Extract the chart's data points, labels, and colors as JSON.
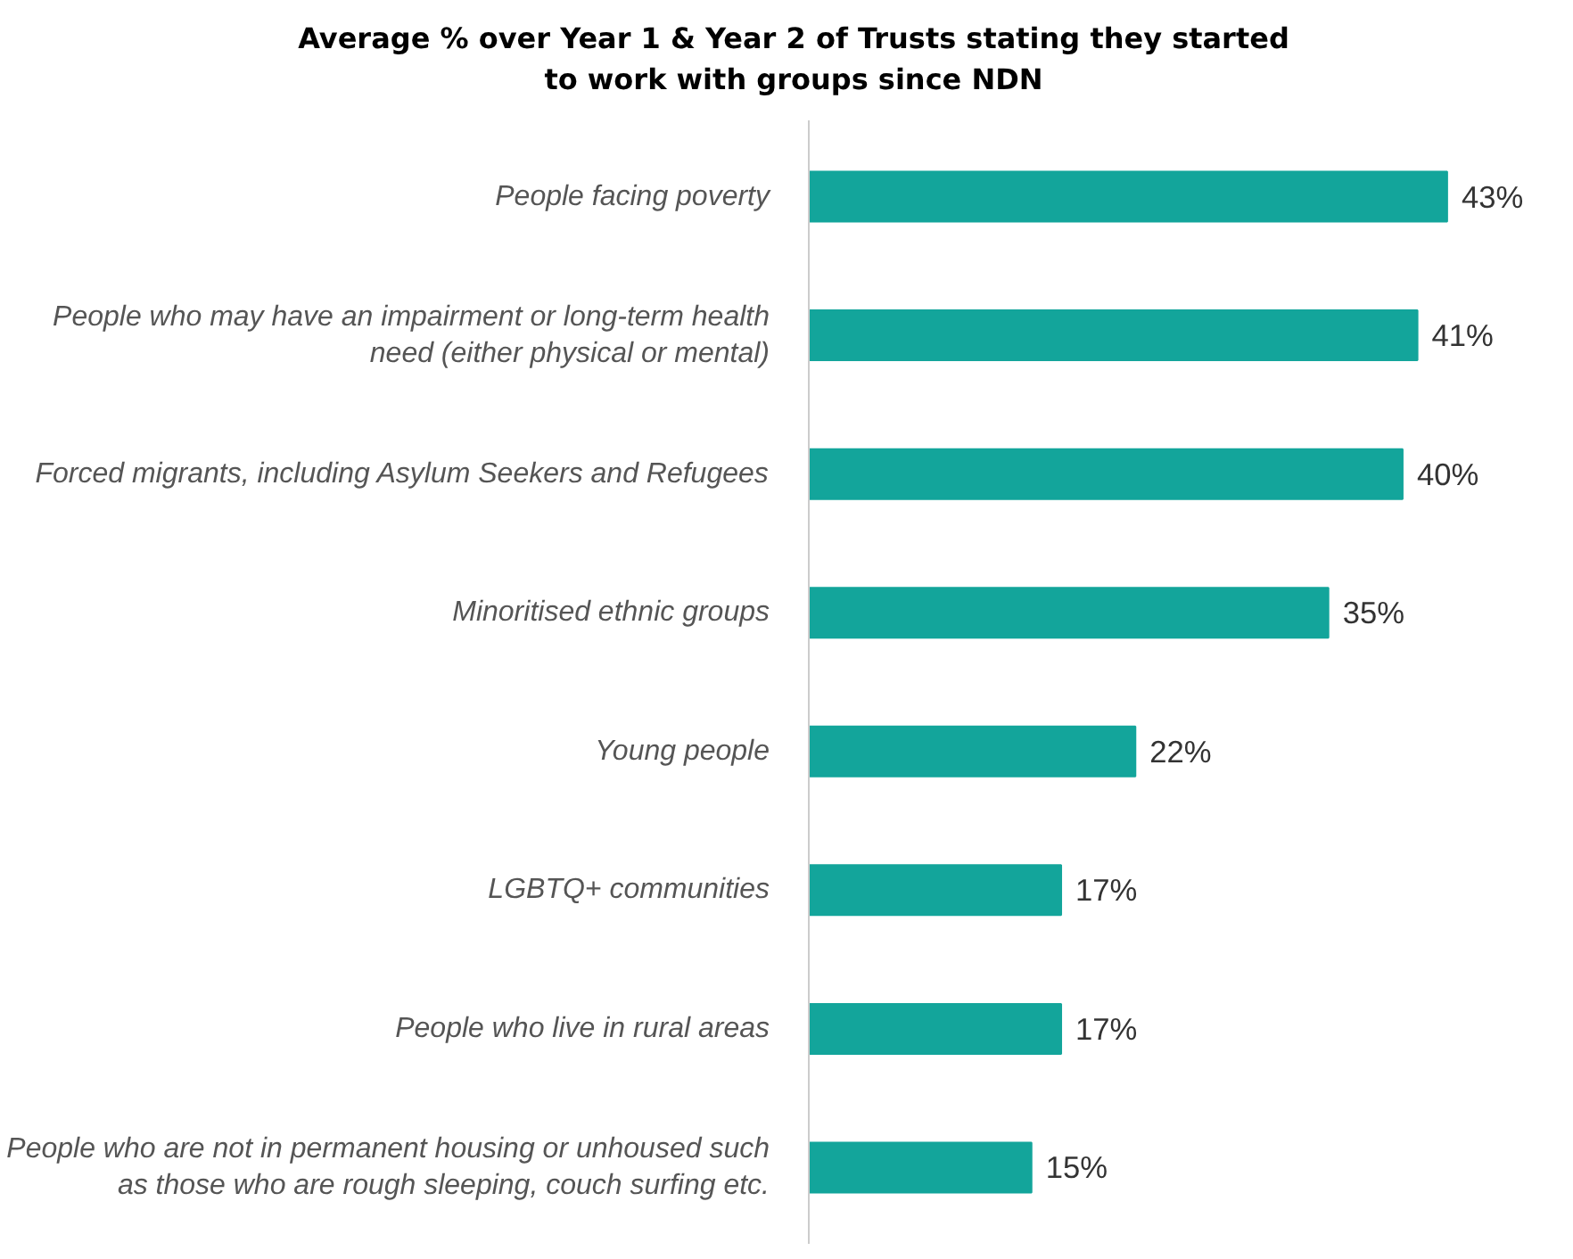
{
  "chart_data": {
    "type": "bar",
    "orientation": "horizontal",
    "title": "Average % over Year 1 & Year 2 of Trusts stating they started to work with groups since NDN",
    "categories": [
      "People facing poverty",
      "People who may have an impairment or long-term health need (either physical or mental)",
      "Forced migrants, including Asylum Seekers and Refugees",
      "Minoritised ethnic groups",
      "Young people",
      "LGBTQ+ communities",
      "People who live in rural areas",
      "People who are not in permanent housing or unhoused such as those who are rough sleeping, couch surfing etc."
    ],
    "values": [
      43,
      41,
      40,
      35,
      22,
      17,
      17,
      15
    ],
    "value_labels": [
      "43%",
      "41%",
      "40%",
      "35%",
      "22%",
      "17%",
      "17%",
      "15%"
    ],
    "color": "#13a59b",
    "grid": false,
    "tick_labels": "y"
  }
}
